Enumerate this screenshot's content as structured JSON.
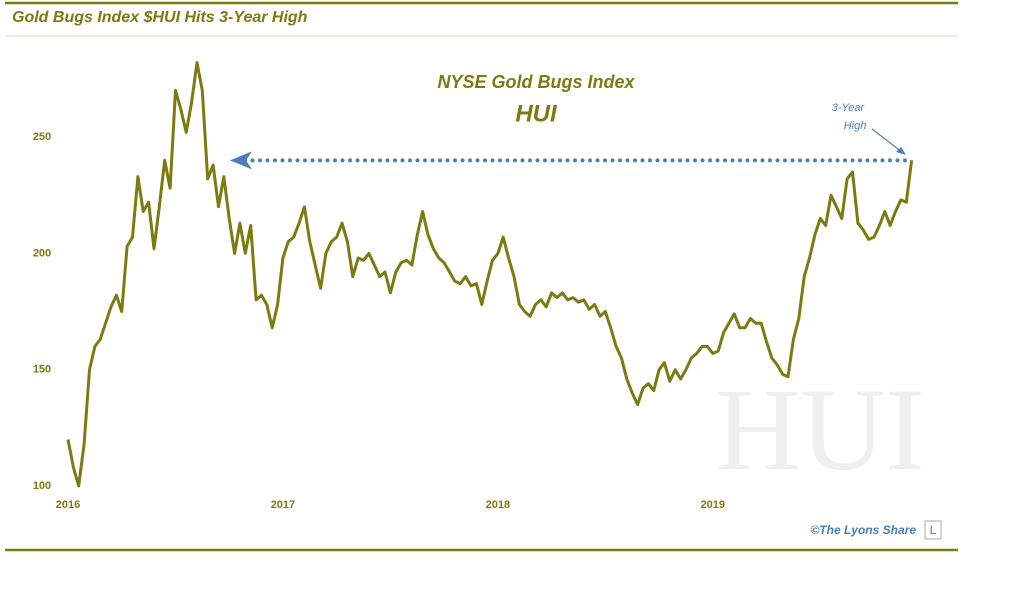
{
  "chart_data": {
    "type": "line",
    "title": "Gold Bugs Index $HUI Hits 3-Year High",
    "heading": [
      "NYSE Gold Bugs Index",
      "HUI"
    ],
    "watermark": "HUI",
    "credit": "©The Lyons Share",
    "logo": "L",
    "annotation": {
      "text": [
        "3-Year",
        "High"
      ],
      "value": 240
    },
    "color": "#7b7b10",
    "xlim": [
      2016,
      2019.95
    ],
    "xticks": [
      2016,
      2017,
      2018,
      2019
    ],
    "ylim": [
      100,
      290
    ],
    "yticks": [
      100,
      150,
      200,
      250
    ],
    "grid": false,
    "x": [
      2016.0,
      2016.025,
      2016.05,
      2016.075,
      2016.1,
      2016.125,
      2016.15,
      2016.175,
      2016.2,
      2016.225,
      2016.25,
      2016.275,
      2016.3,
      2016.325,
      2016.35,
      2016.375,
      2016.4,
      2016.425,
      2016.45,
      2016.475,
      2016.5,
      2016.525,
      2016.55,
      2016.575,
      2016.6,
      2016.625,
      2016.65,
      2016.675,
      2016.7,
      2016.725,
      2016.75,
      2016.775,
      2016.8,
      2016.825,
      2016.85,
      2016.875,
      2016.9,
      2016.925,
      2016.95,
      2016.975,
      2017.0,
      2017.025,
      2017.05,
      2017.075,
      2017.1,
      2017.125,
      2017.15,
      2017.175,
      2017.2,
      2017.225,
      2017.25,
      2017.275,
      2017.3,
      2017.325,
      2017.35,
      2017.375,
      2017.4,
      2017.425,
      2017.45,
      2017.475,
      2017.5,
      2017.525,
      2017.55,
      2017.575,
      2017.6,
      2017.625,
      2017.65,
      2017.675,
      2017.7,
      2017.725,
      2017.75,
      2017.775,
      2017.8,
      2017.825,
      2017.85,
      2017.875,
      2017.9,
      2017.925,
      2017.95,
      2017.975,
      2018.0,
      2018.025,
      2018.05,
      2018.075,
      2018.1,
      2018.125,
      2018.15,
      2018.175,
      2018.2,
      2018.225,
      2018.25,
      2018.275,
      2018.3,
      2018.325,
      2018.35,
      2018.375,
      2018.4,
      2018.425,
      2018.45,
      2018.475,
      2018.5,
      2018.525,
      2018.55,
      2018.575,
      2018.6,
      2018.625,
      2018.65,
      2018.675,
      2018.7,
      2018.725,
      2018.75,
      2018.775,
      2018.8,
      2018.825,
      2018.85,
      2018.875,
      2018.9,
      2018.925,
      2018.95,
      2018.975,
      2019.0,
      2019.025,
      2019.05,
      2019.075,
      2019.1,
      2019.125,
      2019.15,
      2019.175,
      2019.2,
      2019.225,
      2019.25,
      2019.275,
      2019.3,
      2019.325,
      2019.35,
      2019.375,
      2019.4,
      2019.425,
      2019.45,
      2019.475,
      2019.5,
      2019.525,
      2019.55,
      2019.575,
      2019.6,
      2019.625,
      2019.65,
      2019.675,
      2019.7,
      2019.725,
      2019.75,
      2019.775,
      2019.8,
      2019.825,
      2019.85,
      2019.875,
      2019.9,
      2019.925
    ],
    "values": [
      120,
      108,
      100,
      118,
      150,
      160,
      163,
      170,
      177,
      182,
      175,
      203,
      207,
      233,
      218,
      222,
      202,
      220,
      240,
      228,
      270,
      262,
      252,
      265,
      282,
      270,
      232,
      238,
      220,
      233,
      215,
      200,
      213,
      200,
      212,
      180,
      182,
      178,
      168,
      178,
      198,
      205,
      207,
      213,
      220,
      205,
      195,
      185,
      200,
      205,
      207,
      213,
      205,
      190,
      198,
      197,
      200,
      195,
      190,
      192,
      183,
      192,
      196,
      197,
      195,
      208,
      218,
      208,
      202,
      198,
      196,
      192,
      188,
      187,
      190,
      186,
      187,
      178,
      188,
      197,
      200,
      207,
      198,
      190,
      178,
      175,
      173,
      178,
      180,
      177,
      183,
      181,
      183,
      180,
      181,
      179,
      180,
      176,
      178,
      173,
      175,
      168,
      160,
      155,
      146,
      140,
      135,
      142,
      144,
      141,
      150,
      153,
      145,
      150,
      146,
      150,
      155,
      157,
      160,
      160,
      157,
      158,
      166,
      170,
      174,
      168,
      168,
      172,
      170,
      170,
      162,
      155,
      152,
      148,
      147,
      163,
      172,
      190,
      198,
      208,
      215,
      212,
      225,
      220,
      215,
      232,
      235,
      213,
      210,
      206,
      207,
      212,
      218,
      212,
      218,
      223,
      222,
      240
    ]
  }
}
